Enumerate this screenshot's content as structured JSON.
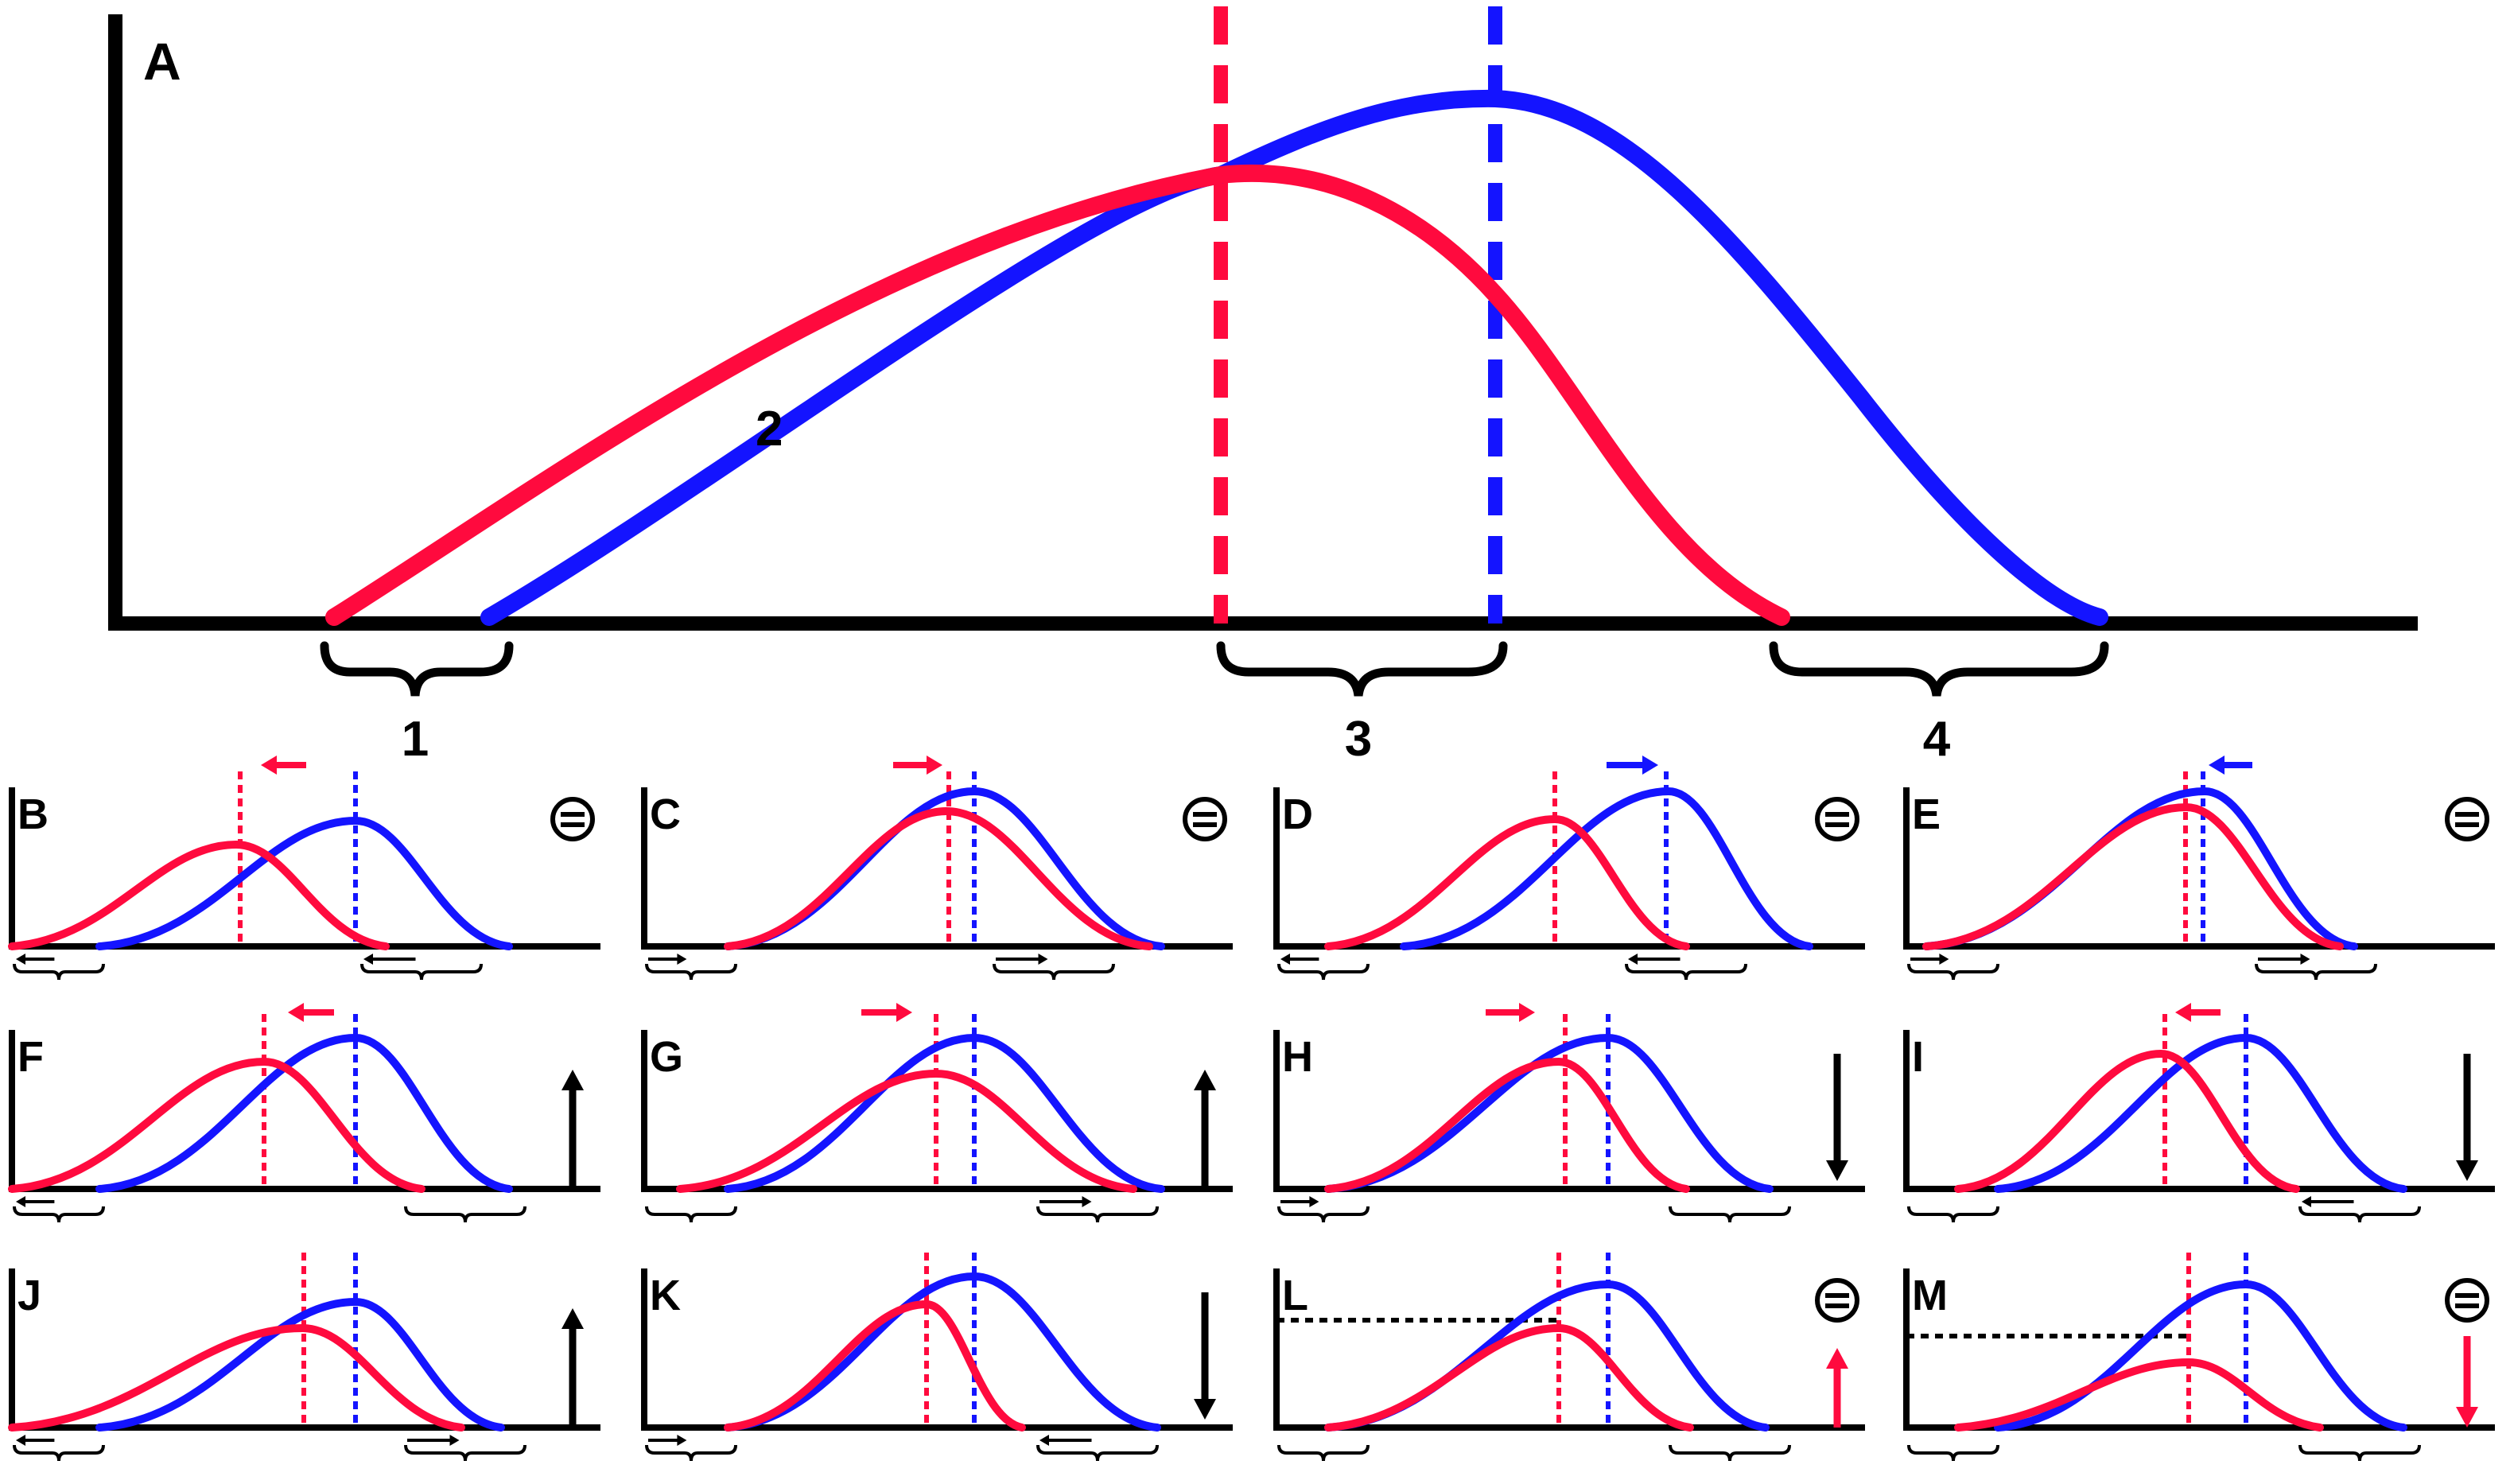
{
  "colors": {
    "red": "#ff0a3e",
    "blue": "#1414ff",
    "black": "#000000"
  },
  "main": {
    "label": "A",
    "annotations": [
      "1",
      "2",
      "3",
      "4"
    ]
  },
  "panels": [
    {
      "label": "B",
      "symbol": "equals-circle",
      "shift": "left",
      "shift_color": "red"
    },
    {
      "label": "C",
      "symbol": "equals-circle",
      "shift": "right",
      "shift_color": "red"
    },
    {
      "label": "D",
      "symbol": "equals-circle",
      "shift": "right",
      "shift_color": "blue"
    },
    {
      "label": "E",
      "symbol": "equals-circle",
      "shift": "left",
      "shift_color": "blue"
    },
    {
      "label": "F",
      "symbol": "arrow-up",
      "shift": "left",
      "shift_color": "red"
    },
    {
      "label": "G",
      "symbol": "arrow-up",
      "shift": "right",
      "shift_color": "red"
    },
    {
      "label": "H",
      "symbol": "arrow-down",
      "shift": "right",
      "shift_color": "red"
    },
    {
      "label": "I",
      "symbol": "arrow-down",
      "shift": "left",
      "shift_color": "red"
    },
    {
      "label": "J",
      "symbol": "arrow-up"
    },
    {
      "label": "K",
      "symbol": "arrow-down"
    },
    {
      "label": "L",
      "symbol": "equals-circle-red-arrow-up"
    },
    {
      "label": "M",
      "symbol": "equals-circle-red-arrow-down"
    }
  ]
}
